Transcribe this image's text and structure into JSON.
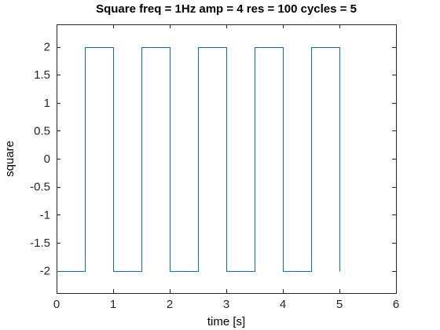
{
  "chart_data": {
    "type": "line",
    "title": "Square freq = 1Hz amp = 4 res = 100 cycles = 5",
    "xlabel": "time [s]",
    "ylabel": "square",
    "xlim": [
      0,
      6
    ],
    "ylim": [
      -2.4,
      2.4
    ],
    "xticks": [
      0,
      1,
      2,
      3,
      4,
      5,
      6
    ],
    "xtick_labels": [
      "0",
      "1",
      "2",
      "3",
      "4",
      "5",
      "6"
    ],
    "yticks": [
      2,
      1.5,
      1,
      0.5,
      0,
      -0.5,
      -1,
      -1.5,
      -2
    ],
    "ytick_labels": [
      "2",
      "1.5",
      "1",
      "0.5",
      "0",
      "-0.5",
      "-1",
      "-1.5",
      "-2"
    ],
    "grid": false,
    "line_color": "#0072bd",
    "series": [
      {
        "x": [
          0,
          0.5,
          0.5,
          1.0,
          1.0,
          1.5,
          1.5,
          2.0,
          2.0,
          2.5,
          2.5,
          3.0,
          3.0,
          3.5,
          3.5,
          4.0,
          4.0,
          4.5,
          4.5,
          5.0,
          5.0
        ],
        "y": [
          -2,
          -2,
          2,
          2,
          -2,
          -2,
          2,
          2,
          -2,
          -2,
          2,
          2,
          -2,
          -2,
          2,
          2,
          -2,
          -2,
          2,
          2,
          -2
        ]
      }
    ]
  }
}
